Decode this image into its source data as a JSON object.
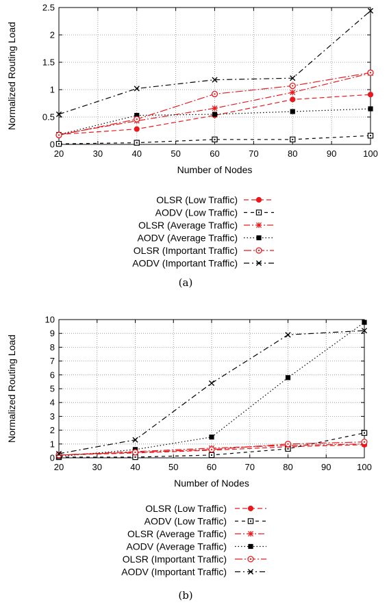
{
  "chart_data": [
    {
      "type": "line",
      "caption": "(a)",
      "xlabel": "Number of Nodes",
      "ylabel": "Normalized Routing Load",
      "x": [
        20,
        40,
        60,
        80,
        100
      ],
      "xlim": [
        20,
        100
      ],
      "ylim": [
        0,
        2.5
      ],
      "xticks": [
        "20",
        "30",
        "40",
        "50",
        "60",
        "70",
        "80",
        "90",
        "100"
      ],
      "yticks": [
        "0",
        "0.5",
        "1",
        "1.5",
        "2",
        "2.5"
      ],
      "grid": true,
      "legend_position": "below",
      "series": [
        {
          "name": "OLSR (Low Traffic)",
          "values": [
            0.18,
            0.28,
            0.53,
            0.82,
            0.91
          ]
        },
        {
          "name": "AODV (Low Traffic)",
          "values": [
            0.01,
            0.03,
            0.09,
            0.09,
            0.16
          ]
        },
        {
          "name": "OLSR (Average Traffic)",
          "values": [
            0.18,
            0.43,
            0.66,
            0.95,
            1.3
          ]
        },
        {
          "name": "AODV (Average Traffic)",
          "values": [
            0.18,
            0.53,
            0.55,
            0.6,
            0.65
          ]
        },
        {
          "name": "OLSR (Important Traffic)",
          "values": [
            0.17,
            0.46,
            0.92,
            1.07,
            1.31
          ]
        },
        {
          "name": "AODV (Important Traffic)",
          "values": [
            0.55,
            1.02,
            1.18,
            1.21,
            2.44
          ]
        }
      ]
    },
    {
      "type": "line",
      "caption": "(b)",
      "xlabel": "Number of Nodes",
      "ylabel": "Normalized Routing Load",
      "x": [
        20,
        40,
        60,
        80,
        100
      ],
      "xlim": [
        20,
        100
      ],
      "ylim": [
        0,
        10
      ],
      "xticks": [
        "20",
        "30",
        "40",
        "50",
        "60",
        "70",
        "80",
        "90",
        "100"
      ],
      "yticks": [
        "0",
        "1",
        "2",
        "3",
        "4",
        "5",
        "6",
        "7",
        "8",
        "9",
        "10"
      ],
      "grid": true,
      "legend_position": "below",
      "series": [
        {
          "name": "OLSR (Low Traffic)",
          "values": [
            0.2,
            0.35,
            0.55,
            0.8,
            0.95
          ]
        },
        {
          "name": "AODV (Low Traffic)",
          "values": [
            0.05,
            0.05,
            0.2,
            0.65,
            1.8
          ]
        },
        {
          "name": "OLSR (Average Traffic)",
          "values": [
            0.2,
            0.45,
            0.7,
            0.9,
            1.0
          ]
        },
        {
          "name": "AODV (Average Traffic)",
          "values": [
            0.1,
            0.6,
            1.5,
            5.8,
            9.8
          ]
        },
        {
          "name": "OLSR (Important Traffic)",
          "values": [
            0.2,
            0.4,
            0.6,
            1.0,
            1.15
          ]
        },
        {
          "name": "AODV (Important Traffic)",
          "values": [
            0.3,
            1.3,
            5.4,
            8.9,
            9.2
          ]
        }
      ]
    }
  ],
  "styles": [
    {
      "color": "#e8191d",
      "dash": "7,4",
      "marker": "filled-circle"
    },
    {
      "color": "#000000",
      "dash": "5,5",
      "marker": "open-square"
    },
    {
      "color": "#e8191d",
      "dash": "9,3,2,3",
      "marker": "asterisk"
    },
    {
      "color": "#000000",
      "dash": "1.5,3",
      "marker": "filled-square"
    },
    {
      "color": "#e8191d",
      "dash": "11,3,2,3",
      "marker": "open-circle"
    },
    {
      "color": "#000000",
      "dash": "8,4,2,4",
      "marker": "cross"
    }
  ]
}
